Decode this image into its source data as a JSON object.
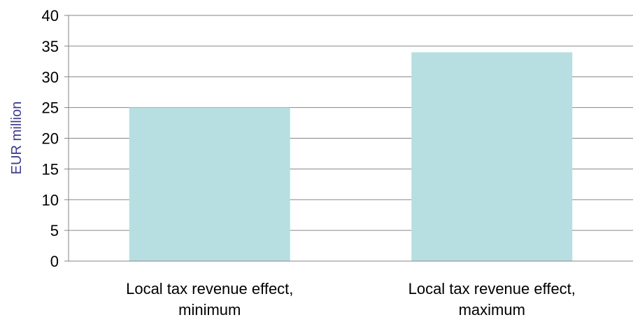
{
  "chart_data": {
    "type": "bar",
    "title": "",
    "xlabel": "",
    "ylabel": "EUR million",
    "categories": [
      [
        "Local tax revenue effect,",
        "minimum"
      ],
      [
        "Local tax revenue effect,",
        "maximum"
      ]
    ],
    "values": [
      25,
      34
    ],
    "ylim": [
      0,
      40
    ],
    "yticks": [
      "0",
      "5",
      "10",
      "15",
      "20",
      "25",
      "30",
      "35",
      "40"
    ],
    "grid": true,
    "legend": "none",
    "colors": {
      "bar": "#b7dfe2",
      "grid": "#868686",
      "axis": "#868686",
      "ylabel": "#403c8c"
    }
  }
}
